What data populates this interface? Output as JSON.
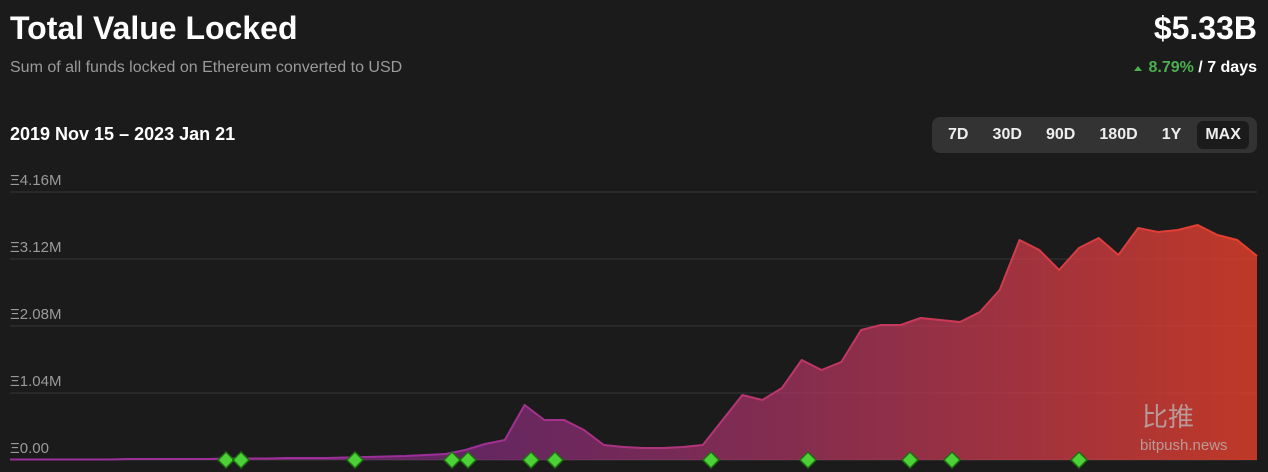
{
  "header": {
    "title": "Total Value Locked",
    "subtitle": "Sum of all funds locked on Ethereum converted to USD",
    "headline_value": "$5.33B",
    "change": "8.79%",
    "change_period": "/ 7 days"
  },
  "date_range": "2019 Nov 15 – 2023 Jan 21",
  "range_buttons": [
    "7D",
    "30D",
    "90D",
    "180D",
    "1Y",
    "MAX"
  ],
  "active_button": "MAX",
  "watermark": {
    "logo_text": "比推",
    "site": "bitpush.news"
  },
  "chart_data": {
    "type": "area",
    "categories": [
      null,
      null,
      null,
      null,
      null,
      null,
      null,
      null,
      null,
      null,
      null,
      null,
      null,
      null,
      null,
      null,
      null,
      null,
      null,
      null,
      null,
      null,
      null,
      null,
      null,
      null,
      null,
      null,
      null,
      null,
      null,
      null,
      null,
      null,
      null,
      null,
      null,
      null,
      null,
      null,
      null,
      null,
      null,
      null,
      null,
      null,
      null,
      null,
      null,
      null,
      null,
      null,
      null,
      null,
      null,
      null,
      null,
      null,
      null,
      null,
      null,
      null,
      null,
      null
    ],
    "values": [
      8000,
      8000,
      8000,
      8000,
      8000,
      8000,
      16000,
      16000,
      16000,
      16000,
      16000,
      23000,
      23000,
      23000,
      31000,
      31000,
      31000,
      39000,
      47000,
      54000,
      62000,
      78000,
      93000,
      155000,
      248000,
      310000,
      854000,
      621000,
      621000,
      466000,
      233000,
      202000,
      186000,
      186000,
      202000,
      233000,
      621000,
      1009000,
      931000,
      1118000,
      1552000,
      1397000,
      1521000,
      2018000,
      2095000,
      2095000,
      2204000,
      2173000,
      2142000,
      2297000,
      2639000,
      3415000,
      3260000,
      2949000,
      3291000,
      3446000,
      3182000,
      3601000,
      3539000,
      3570000,
      3648000,
      3492000,
      3415000,
      3166000
    ],
    "color_start": "#9c2f9a",
    "color_end": "#e8402a",
    "ylim": [
      0,
      4160000
    ],
    "yticks": [
      {
        "value": 0,
        "label": "Ξ0.00"
      },
      {
        "value": 1040000,
        "label": "Ξ1.04M"
      },
      {
        "value": 2080000,
        "label": "Ξ2.08M"
      },
      {
        "value": 3120000,
        "label": "Ξ3.12M"
      },
      {
        "value": 4160000,
        "label": "Ξ4.16M"
      }
    ],
    "grid": true
  }
}
